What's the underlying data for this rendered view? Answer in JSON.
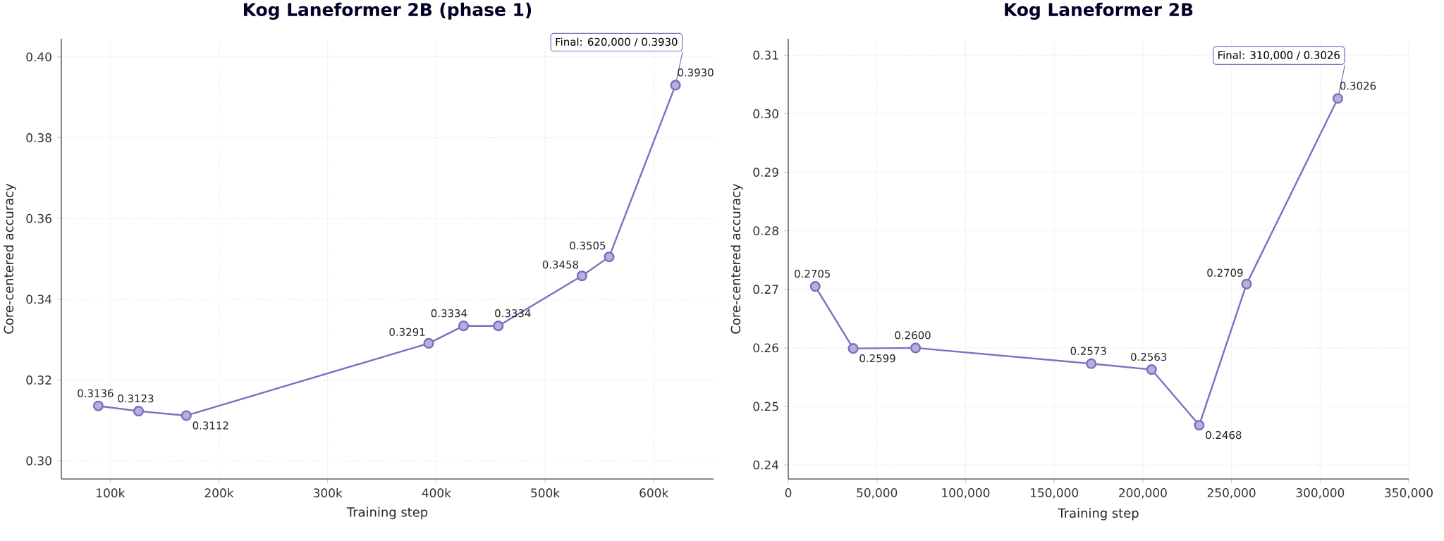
{
  "chart_data": [
    {
      "type": "line",
      "title": "Kog Laneformer 2B (phase 1)",
      "xlabel": "Training step",
      "ylabel": "Core-centered accuracy",
      "x": [
        89000,
        126000,
        170000,
        393000,
        425000,
        457000,
        534000,
        559000,
        620000
      ],
      "values": [
        0.3136,
        0.3123,
        0.3112,
        0.3291,
        0.3334,
        0.3334,
        0.3458,
        0.3505,
        0.393
      ],
      "value_labels": [
        "0.3136",
        "0.3123",
        "0.3112",
        "0.3291",
        "0.3334",
        "0.3334",
        "0.3458",
        "0.3505",
        "0.3930"
      ],
      "color": "#7b6fbf",
      "marker": "circle",
      "grid": true,
      "xlim": [
        55000,
        655000
      ],
      "ylim": [
        0.2955,
        0.4045
      ],
      "xticks": [
        {
          "value": 100000,
          "label": "100k"
        },
        {
          "value": 200000,
          "label": "200k"
        },
        {
          "value": 300000,
          "label": "300k"
        },
        {
          "value": 400000,
          "label": "400k"
        },
        {
          "value": 500000,
          "label": "500k"
        },
        {
          "value": 600000,
          "label": "600k"
        }
      ],
      "yticks": [
        {
          "value": 0.3,
          "label": "0.30"
        },
        {
          "value": 0.32,
          "label": "0.32"
        },
        {
          "value": 0.34,
          "label": "0.34"
        },
        {
          "value": 0.36,
          "label": "0.36"
        },
        {
          "value": 0.38,
          "label": "0.38"
        },
        {
          "value": 0.4,
          "label": "0.40"
        }
      ],
      "annotations": [
        {
          "text": "Final: 620,000 / 0.3930",
          "x": 620000,
          "y": 0.393
        }
      ]
    },
    {
      "type": "line",
      "title": "Kog Laneformer 2B",
      "xlabel": "Training step",
      "ylabel": "Core-centered accuracy",
      "x": [
        15200,
        36600,
        71800,
        170900,
        204900,
        231800,
        258500,
        310000
      ],
      "values": [
        0.2705,
        0.2599,
        0.26,
        0.2573,
        0.2563,
        0.2468,
        0.2709,
        0.3026
      ],
      "value_labels": [
        "0.2705",
        "0.2599",
        "0.2600",
        "0.2573",
        "0.2563",
        "0.2468",
        "0.2709",
        "0.3026"
      ],
      "color": "#7b6fbf",
      "marker": "circle",
      "grid": true,
      "xlim": [
        0,
        350000
      ],
      "ylim": [
        0.2376,
        0.3128
      ],
      "xticks": [
        0,
        {
          "value": 50000,
          "label": "50,000"
        },
        {
          "value": 100000,
          "label": "100,000"
        },
        {
          "value": 150000,
          "label": "150,000"
        },
        {
          "value": 200000,
          "label": "200,000"
        },
        {
          "value": 250000,
          "label": "250,000"
        },
        {
          "value": 300000,
          "label": "300,000"
        },
        {
          "value": 350000,
          "label": "350,000"
        }
      ],
      "yticks": [
        {
          "value": 0.24,
          "label": "0.24"
        },
        {
          "value": 0.25,
          "label": "0.25"
        },
        {
          "value": 0.26,
          "label": "0.26"
        },
        {
          "value": 0.27,
          "label": "0.27"
        },
        {
          "value": 0.28,
          "label": "0.28"
        },
        {
          "value": 0.29,
          "label": "0.29"
        },
        {
          "value": 0.3,
          "label": "0.30"
        },
        {
          "value": 0.31,
          "label": "0.31"
        }
      ],
      "annotations": [
        {
          "text": "Final: 310,000 / 0.3026",
          "x": 310000,
          "y": 0.3026
        }
      ]
    }
  ]
}
